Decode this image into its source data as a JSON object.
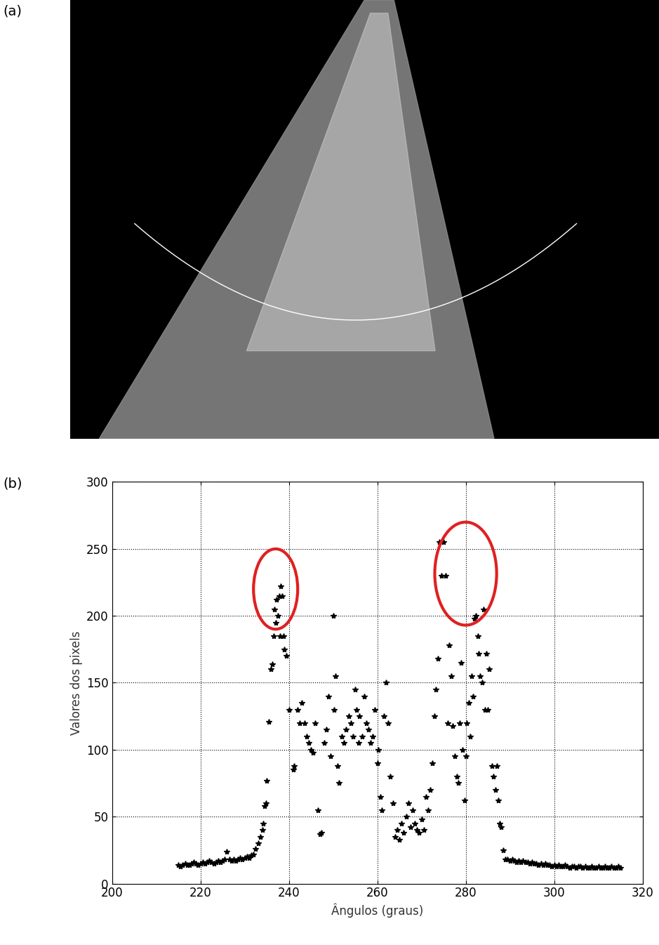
{
  "panel_labels": [
    "(a)",
    "(b)"
  ],
  "chart_data": {
    "type": "scatter",
    "x_label": "Ângulos (graus)",
    "y_label": "Valores dos pixels",
    "color": "#000000",
    "marker": "star",
    "grid": true,
    "xlim": [
      200,
      320
    ],
    "xticks": [
      200,
      220,
      240,
      260,
      280,
      300,
      320
    ],
    "ylim": [
      0,
      300
    ],
    "yticks": [
      0,
      50,
      100,
      150,
      200,
      250,
      300
    ],
    "x": [
      215,
      215.5,
      216,
      216.5,
      217,
      217.5,
      218,
      218.5,
      219,
      219.5,
      220,
      220.5,
      221,
      221.5,
      222,
      222.5,
      223,
      223.5,
      224,
      224.5,
      225,
      225.5,
      226,
      226.5,
      227,
      227.5,
      228,
      228.5,
      229,
      229.5,
      230,
      230.5,
      231,
      231.5,
      232,
      232.5,
      233,
      233.5,
      234,
      234.2,
      234.5,
      234.8,
      235,
      235.5,
      236,
      236.2,
      236.5,
      236.8,
      237,
      237.2,
      237.5,
      237.8,
      238,
      238.2,
      238.5,
      238.8,
      239,
      239.5,
      240,
      241,
      241.2,
      242,
      242.5,
      243,
      243.5,
      244,
      244.5,
      245,
      245.5,
      246,
      246.5,
      247,
      247.3,
      248,
      248.5,
      249,
      249.5,
      250,
      250.2,
      250.5,
      251,
      251.3,
      252,
      252.5,
      253,
      253.5,
      254,
      254.5,
      255,
      255.3,
      255.8,
      256,
      256.5,
      257,
      257.5,
      258,
      258.5,
      259,
      259.5,
      260,
      260.3,
      260.7,
      261,
      261.5,
      262,
      262.5,
      263,
      263.5,
      264,
      264.5,
      265,
      265.5,
      266,
      266.5,
      267,
      267.5,
      268,
      268.5,
      269,
      269.5,
      270,
      270.5,
      271,
      271.5,
      272,
      272.5,
      273,
      273.3,
      273.7,
      274,
      274.5,
      275,
      275.5,
      276,
      276.3,
      276.7,
      277,
      277.5,
      278,
      278.3,
      278.7,
      279,
      279.3,
      279.7,
      280,
      280.3,
      280.7,
      281,
      281.3,
      281.7,
      282,
      282.3,
      282.7,
      283,
      283.3,
      283.7,
      284,
      284.3,
      284.7,
      285,
      285.3,
      286,
      286.3,
      286.7,
      287,
      287.3,
      287.7,
      288,
      288.5,
      289,
      289.5,
      290,
      290.5,
      291,
      291.5,
      292,
      292.5,
      293,
      293.5,
      294,
      294.5,
      295,
      295.5,
      296,
      296.5,
      297,
      297.5,
      298,
      298.5,
      299,
      299.5,
      300,
      300.5,
      301,
      301.5,
      302,
      302.5,
      303,
      303.5,
      304,
      304.5,
      305,
      305.5,
      306,
      306.5,
      307,
      307.5,
      308,
      308.5,
      309,
      309.5,
      310,
      310.5,
      311,
      311.5,
      312,
      312.5,
      313,
      313.5,
      314,
      314.5,
      315
    ],
    "values": [
      14,
      13,
      14,
      15,
      14,
      14,
      15,
      16,
      15,
      14,
      15,
      16,
      15,
      16,
      17,
      16,
      15,
      16,
      17,
      16,
      17,
      18,
      24,
      18,
      17,
      18,
      17,
      18,
      19,
      18,
      19,
      20,
      19,
      21,
      22,
      26,
      30,
      35,
      40,
      45,
      58,
      60,
      77,
      121,
      160,
      164,
      185,
      205,
      195,
      212,
      200,
      215,
      185,
      222,
      215,
      185,
      175,
      170,
      130,
      85,
      88,
      130,
      120,
      135,
      120,
      110,
      105,
      100,
      98,
      120,
      55,
      37,
      38,
      105,
      115,
      140,
      95,
      200,
      130,
      155,
      88,
      75,
      110,
      105,
      115,
      125,
      120,
      110,
      145,
      130,
      105,
      125,
      110,
      140,
      120,
      115,
      105,
      110,
      130,
      90,
      100,
      65,
      55,
      125,
      150,
      120,
      80,
      60,
      35,
      40,
      33,
      45,
      38,
      50,
      60,
      42,
      55,
      45,
      40,
      38,
      48,
      40,
      65,
      55,
      70,
      90,
      125,
      145,
      168,
      255,
      230,
      255,
      230,
      120,
      178,
      155,
      118,
      95,
      80,
      75,
      120,
      165,
      100,
      62,
      95,
      120,
      135,
      110,
      155,
      140,
      198,
      200,
      185,
      172,
      155,
      150,
      205,
      130,
      172,
      130,
      160,
      88,
      80,
      70,
      88,
      62,
      45,
      42,
      25,
      18,
      18,
      17,
      18,
      17,
      16,
      17,
      16,
      17,
      16,
      16,
      15,
      16,
      15,
      15,
      14,
      15,
      14,
      15,
      14,
      14,
      13,
      14,
      13,
      14,
      13,
      13,
      14,
      13,
      12,
      13,
      13,
      12,
      13,
      13,
      12,
      13,
      12,
      12,
      13,
      12,
      12,
      13,
      12,
      12,
      13,
      12,
      12,
      13,
      12,
      12,
      13,
      12
    ],
    "highlights": [
      {
        "x": [
          232,
          242
        ],
        "y": [
          190,
          250
        ],
        "color": "#e02020"
      },
      {
        "x": [
          273,
          287
        ],
        "y": [
          193,
          270
        ],
        "color": "#e02020"
      }
    ]
  }
}
